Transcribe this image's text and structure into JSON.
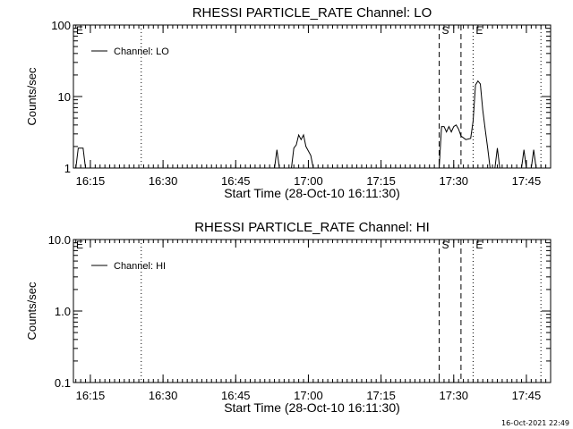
{
  "stamp": "16-Oct-2021 22:49",
  "chart_data": [
    {
      "type": "line",
      "title": "RHESSI PARTICLE_RATE Channel: LO",
      "xlabel": "Start Time (28-Oct-10 16:11:30)",
      "ylabel": "Counts/sec",
      "yscale": "log",
      "xlim": [
        "16:11:30",
        "17:50:00"
      ],
      "ylim": [
        1,
        100
      ],
      "x_ticks": [
        "16:15",
        "16:30",
        "16:45",
        "17:00",
        "17:15",
        "17:30",
        "17:45"
      ],
      "y_ticks": [
        "1",
        "10",
        "100"
      ],
      "legend": {
        "entries": [
          "Channel: LO"
        ],
        "position": "top-left"
      },
      "markers": [
        {
          "label": "E",
          "x": "16:11:30",
          "style": "none"
        },
        {
          "label": "",
          "x": "16:25:30",
          "style": "dotted"
        },
        {
          "label": "S",
          "x": "17:27:00",
          "style": "dashed"
        },
        {
          "label": "",
          "x": "17:31:30",
          "style": "dashed"
        },
        {
          "label": "E",
          "x": "17:34:00",
          "style": "dotted"
        },
        {
          "label": "",
          "x": "17:48:00",
          "style": "dotted"
        }
      ],
      "series": [
        {
          "name": "Channel: LO",
          "points": [
            [
              "16:12:00",
              1
            ],
            [
              "16:12:30",
              1.9
            ],
            [
              "16:13:30",
              1.9
            ],
            [
              "16:14:00",
              1
            ],
            [
              "16:53:00",
              1
            ],
            [
              "16:53:30",
              1.8
            ],
            [
              "16:54:00",
              1
            ],
            [
              "16:56:30",
              1
            ],
            [
              "16:57:00",
              1.9
            ],
            [
              "16:57:30",
              2.1
            ],
            [
              "16:58:00",
              2.9
            ],
            [
              "16:58:30",
              2.5
            ],
            [
              "16:59:00",
              2.9
            ],
            [
              "16:59:30",
              2.0
            ],
            [
              "17:00:30",
              1.5
            ],
            [
              "17:01:00",
              1
            ],
            [
              "17:27:00",
              1
            ],
            [
              "17:27:30",
              3.8
            ],
            [
              "17:28:00",
              3.8
            ],
            [
              "17:28:30",
              3.2
            ],
            [
              "17:29:00",
              3.8
            ],
            [
              "17:29:30",
              3.2
            ],
            [
              "17:30:00",
              3.8
            ],
            [
              "17:30:30",
              4.0
            ],
            [
              "17:31:00",
              3.5
            ],
            [
              "17:31:30",
              2.8
            ],
            [
              "17:32:30",
              2.5
            ],
            [
              "17:33:30",
              2.6
            ],
            [
              "17:34:00",
              4.5
            ],
            [
              "17:34:30",
              14.5
            ],
            [
              "17:35:00",
              16.5
            ],
            [
              "17:35:30",
              15.0
            ],
            [
              "17:36:00",
              6.5
            ],
            [
              "17:36:30",
              3.5
            ],
            [
              "17:37:00",
              1.9
            ],
            [
              "17:37:30",
              1
            ],
            [
              "17:38:30",
              1
            ],
            [
              "17:39:00",
              1.9
            ],
            [
              "17:39:30",
              1
            ],
            [
              "17:44:00",
              1
            ],
            [
              "17:44:30",
              1.8
            ],
            [
              "17:45:00",
              1
            ],
            [
              "17:46:00",
              1
            ],
            [
              "17:46:30",
              1.8
            ],
            [
              "17:47:00",
              1
            ]
          ]
        }
      ]
    },
    {
      "type": "line",
      "title": "RHESSI PARTICLE_RATE Channel: HI",
      "xlabel": "Start Time (28-Oct-10 16:11:30)",
      "ylabel": "Counts/sec",
      "yscale": "log",
      "xlim": [
        "16:11:30",
        "17:50:00"
      ],
      "ylim": [
        0.1,
        10
      ],
      "x_ticks": [
        "16:15",
        "16:30",
        "16:45",
        "17:00",
        "17:15",
        "17:30",
        "17:45"
      ],
      "y_ticks": [
        "0.1",
        "1.0",
        "10.0"
      ],
      "legend": {
        "entries": [
          "Channel: HI"
        ],
        "position": "top-left"
      },
      "markers": [
        {
          "label": "E",
          "x": "16:11:30",
          "style": "none"
        },
        {
          "label": "",
          "x": "16:25:30",
          "style": "dotted"
        },
        {
          "label": "S",
          "x": "17:27:00",
          "style": "dashed"
        },
        {
          "label": "",
          "x": "17:31:30",
          "style": "dashed"
        },
        {
          "label": "E",
          "x": "17:34:00",
          "style": "dotted"
        },
        {
          "label": "",
          "x": "17:48:00",
          "style": "dotted"
        }
      ],
      "series": [
        {
          "name": "Channel: HI",
          "points": []
        }
      ]
    }
  ]
}
